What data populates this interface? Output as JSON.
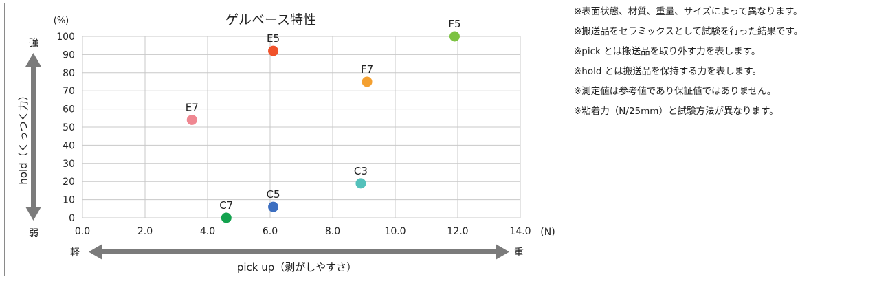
{
  "chart_data": {
    "type": "scatter",
    "title": "ゲルベース特性",
    "xlabel": "pick up（剥がしやすさ）",
    "ylabel": "hold（くっつく力）",
    "x_unit": "(N)",
    "y_unit": "(%)",
    "xlim": [
      0,
      14
    ],
    "ylim": [
      0,
      100
    ],
    "x_ticks": [
      "0.0",
      "2.0",
      "4.0",
      "6.0",
      "8.0",
      "10.0",
      "12.0",
      "14.0"
    ],
    "y_ticks": [
      "0",
      "10",
      "20",
      "30",
      "40",
      "50",
      "60",
      "70",
      "80",
      "90",
      "100"
    ],
    "grid": true,
    "x_arrow": {
      "left": "軽",
      "right": "重"
    },
    "y_arrow": {
      "top": "強",
      "bottom": "弱"
    },
    "points": [
      {
        "label": "F5",
        "x": 11.9,
        "y": 100,
        "color": "#7cc242"
      },
      {
        "label": "E5",
        "x": 6.1,
        "y": 92,
        "color": "#f0522a"
      },
      {
        "label": "F7",
        "x": 9.1,
        "y": 75,
        "color": "#f4a030"
      },
      {
        "label": "E7",
        "x": 3.5,
        "y": 54,
        "color": "#ef8791"
      },
      {
        "label": "C3",
        "x": 8.9,
        "y": 19,
        "color": "#54c1bb"
      },
      {
        "label": "C5",
        "x": 6.1,
        "y": 6,
        "color": "#3c6ec0"
      },
      {
        "label": "C7",
        "x": 4.6,
        "y": 0,
        "color": "#13a24e"
      }
    ]
  },
  "notes": [
    "※表面状態、材質、重量、サイズによって異なります。",
    "※搬送品をセラミックスとして試験を行った結果です。",
    "※pick とは搬送品を取り外す力を表します。",
    "※hold とは搬送品を保持する力を表します。",
    "※測定値は参考値であり保証値ではありません。",
    "※粘着力（N/25mm）と試験方法が異なります。"
  ],
  "colors": {
    "grid": "#c8c8c8",
    "arrow": "#7b7b7b",
    "frame": "#8a8a8a"
  }
}
